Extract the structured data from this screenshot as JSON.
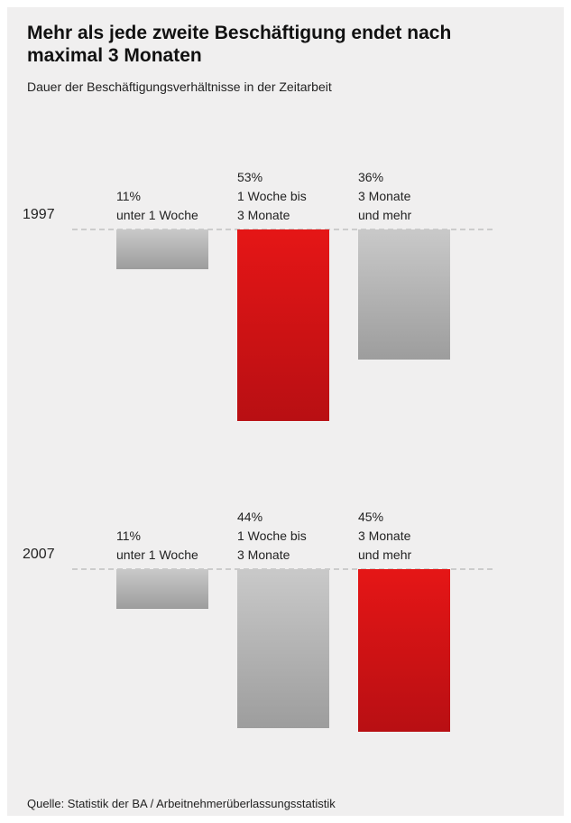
{
  "chart_data": {
    "type": "bar",
    "title": "Mehr als jede zweite Beschäftigung endet nach maximal 3 Monaten",
    "subtitle": "Dauer der Beschäftigungsverhältnisse in der Zeitarbeit",
    "source": "Quelle: Statistik der BA / Arbeitnehmerüberlassungsstatistik",
    "categories": [
      [
        "unter 1 Woche"
      ],
      [
        "1 Woche bis",
        "3 Monate"
      ],
      [
        "3 Monate",
        "und mehr"
      ]
    ],
    "series": [
      {
        "name": "1997",
        "values": [
          11,
          53,
          36
        ],
        "highlight_index": 1
      },
      {
        "name": "2007",
        "values": [
          11,
          44,
          45
        ],
        "highlight_index": 2
      }
    ],
    "unit": "%",
    "colors": {
      "highlight": "#d8141a",
      "neutral": "#a8a8a8"
    },
    "grid": false,
    "legend": "none"
  }
}
